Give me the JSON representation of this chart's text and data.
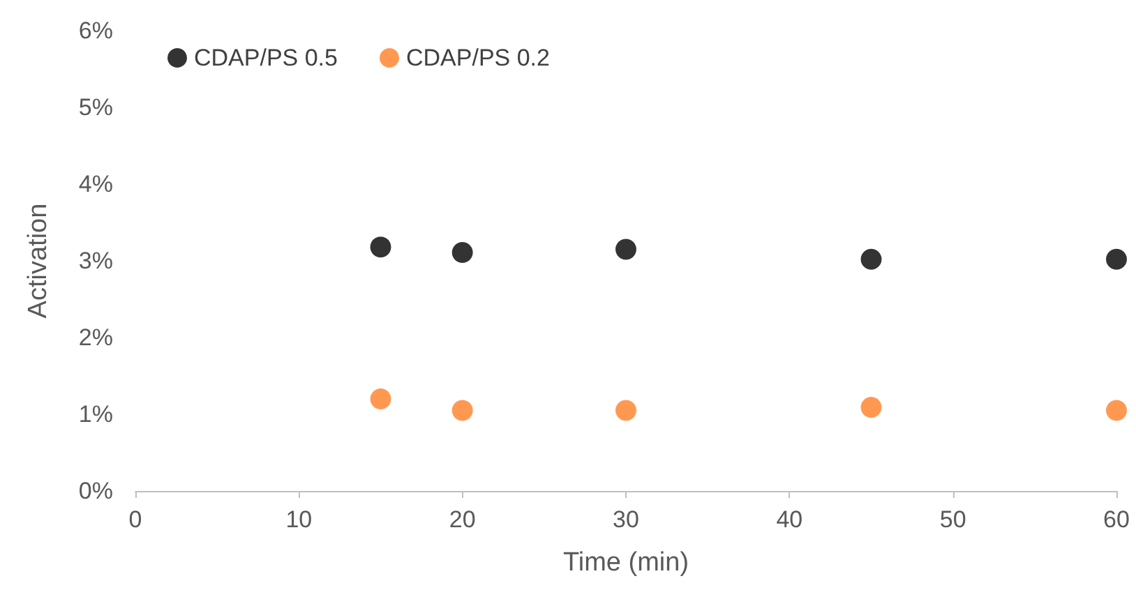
{
  "chart_data": {
    "type": "scatter",
    "xlabel": "Time (min)",
    "ylabel": "Activation",
    "x": [
      15,
      20,
      30,
      45,
      60
    ],
    "series": [
      {
        "name": "CDAP/PS 0.5",
        "color": "#000000",
        "values": [
          3.18,
          3.11,
          3.15,
          3.02,
          3.02
        ]
      },
      {
        "name": "CDAP/PS 0.2",
        "color": "#ff7f27",
        "values": [
          1.2,
          1.05,
          1.05,
          1.09,
          1.05
        ]
      }
    ],
    "xlim": [
      0,
      60
    ],
    "xticks": [
      0,
      10,
      20,
      30,
      40,
      50,
      60
    ],
    "ylim": [
      0,
      6
    ],
    "yticks": [
      {
        "value": 0,
        "label": "0%"
      },
      {
        "value": 1,
        "label": "1%"
      },
      {
        "value": 2,
        "label": "2%"
      },
      {
        "value": 3,
        "label": "3%"
      },
      {
        "value": 4,
        "label": "4%"
      },
      {
        "value": 5,
        "label": "5%"
      },
      {
        "value": 6,
        "label": "6%"
      }
    ],
    "grid": false,
    "legend": "top left",
    "marker": "circle"
  }
}
